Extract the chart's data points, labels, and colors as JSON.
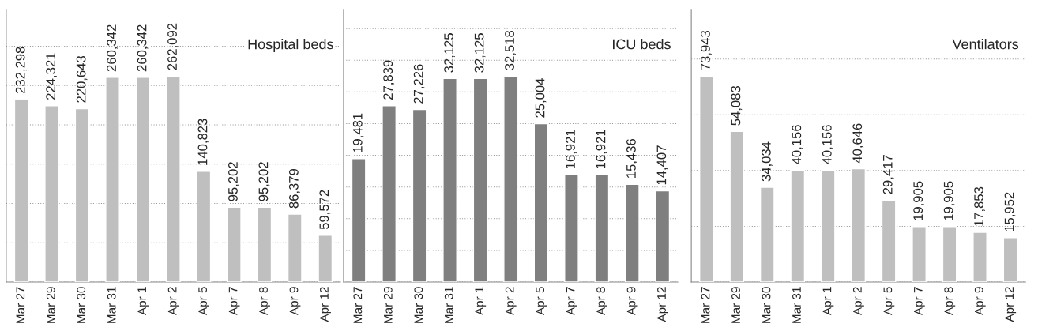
{
  "chart_data": [
    {
      "type": "bar",
      "title": "Hospital beds",
      "categories": [
        "Mar 27",
        "Mar 29",
        "Mar 30",
        "Mar 31",
        "Apr 1",
        "Apr 2",
        "Apr 5",
        "Apr 7",
        "Apr 8",
        "Apr 9",
        "Apr 12"
      ],
      "values": [
        232298,
        224321,
        220643,
        260342,
        260342,
        262092,
        140823,
        95202,
        95202,
        86379,
        59572
      ],
      "value_labels": [
        "232,298",
        "224,321",
        "220,643",
        "260,342",
        "260,342",
        "262,092",
        "140,823",
        "95,202",
        "95,202",
        "86,379",
        "59,572"
      ],
      "color": "#bfbfbf",
      "tick_labels": "x",
      "grid": "y"
    },
    {
      "type": "bar",
      "title": "ICU beds",
      "categories": [
        "Mar 27",
        "Mar 29",
        "Mar 30",
        "Mar 31",
        "Apr 1",
        "Apr 2",
        "Apr 5",
        "Apr 7",
        "Apr 8",
        "Apr 9",
        "Apr 12"
      ],
      "values": [
        19481,
        27839,
        27226,
        32125,
        32125,
        32518,
        25004,
        16921,
        16921,
        15436,
        14407
      ],
      "value_labels": [
        "19,481",
        "27,839",
        "27,226",
        "32,125",
        "32,125",
        "32,518",
        "25,004",
        "16,921",
        "16,921",
        "15,436",
        "14,407"
      ],
      "color": "#7f7f7f",
      "tick_labels": "x",
      "grid": "y"
    },
    {
      "type": "bar",
      "title": "Ventilators",
      "categories": [
        "Mar 27",
        "Mar 29",
        "Mar 30",
        "Mar 31",
        "Apr 1",
        "Apr 2",
        "Apr 5",
        "Apr 7",
        "Apr 8",
        "Apr 9",
        "Apr 12"
      ],
      "values": [
        73943,
        54083,
        34034,
        40156,
        40156,
        40646,
        29417,
        19905,
        19905,
        17853,
        15952
      ],
      "value_labels": [
        "73,943",
        "54,083",
        "34,034",
        "40,156",
        "40,156",
        "40,646",
        "29,417",
        "19,905",
        "19,905",
        "17,853",
        "15,952"
      ],
      "color": "#bfbfbf",
      "tick_labels": "x",
      "grid": "y"
    }
  ]
}
